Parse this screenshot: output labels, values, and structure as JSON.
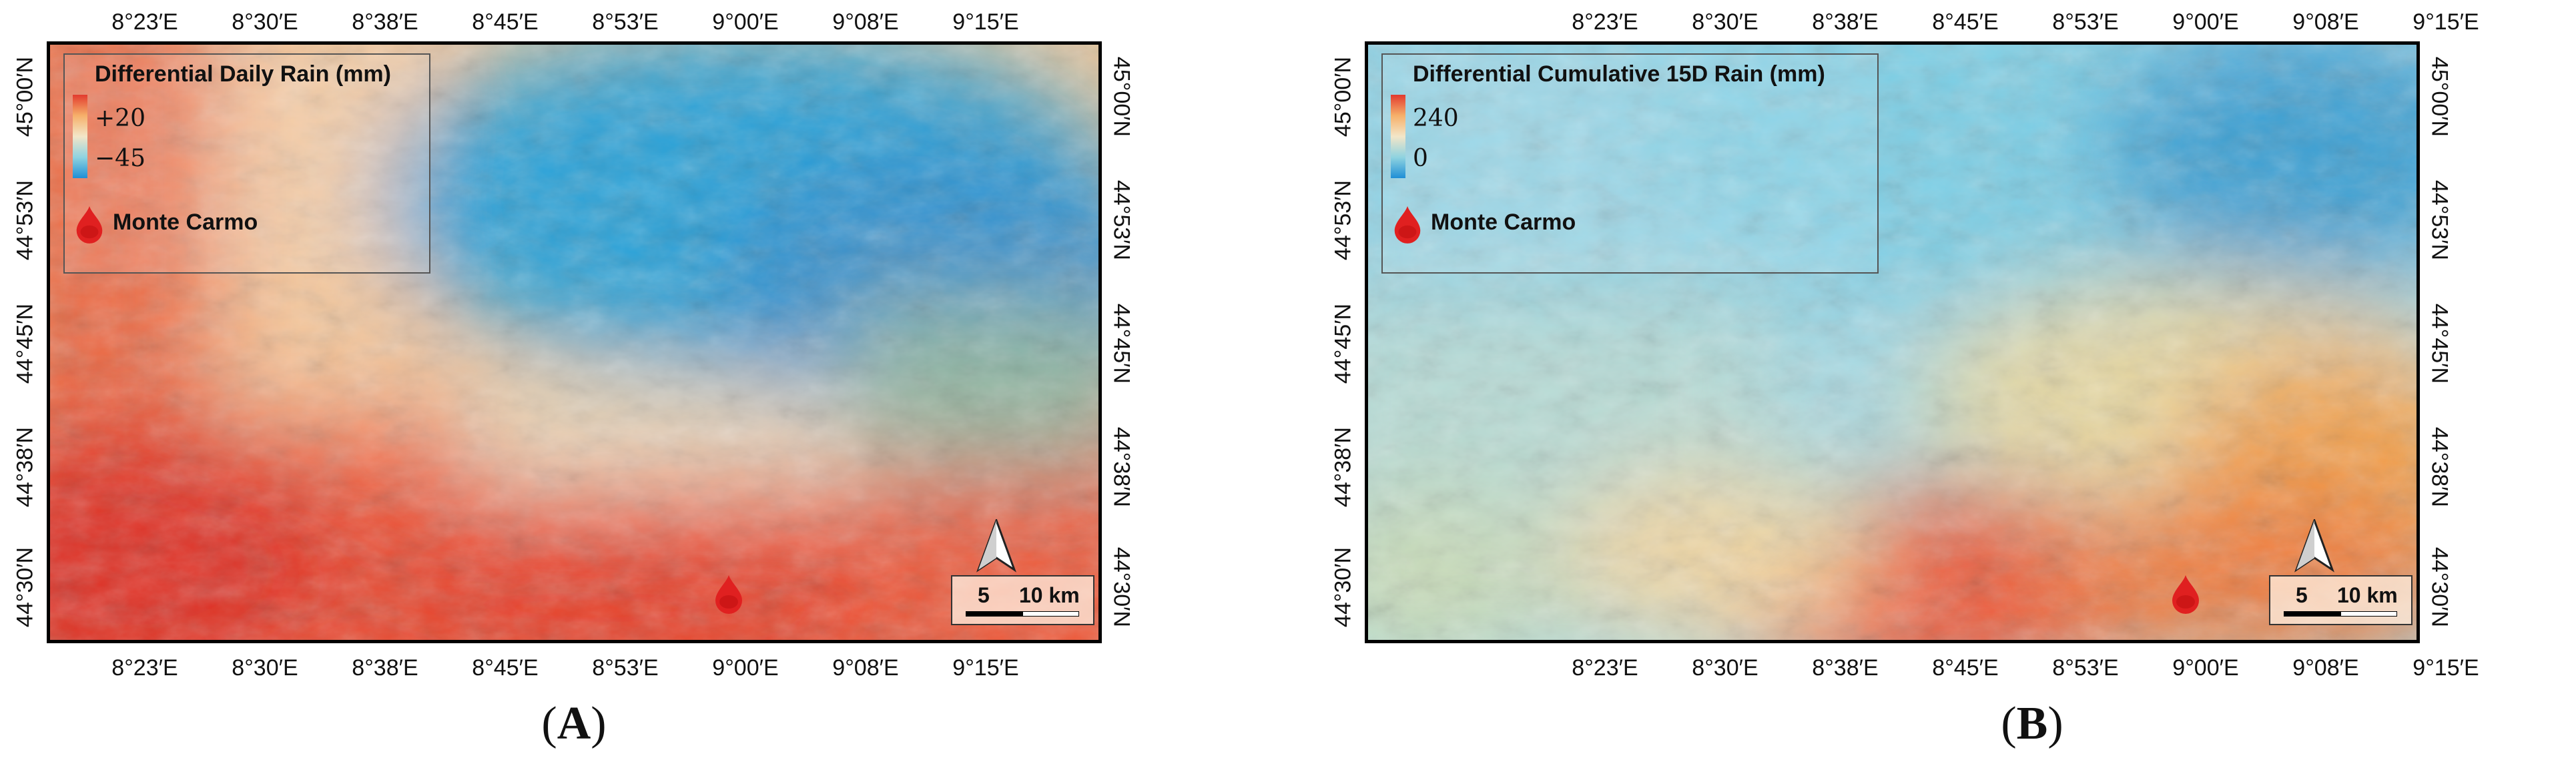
{
  "panels": [
    {
      "id": "A",
      "label_open": "(",
      "label_letter": "A",
      "label_close": ")",
      "legend": {
        "title": "Differential Daily Rain (mm)",
        "max_label": "+20",
        "min_label": "−45",
        "place_label": "Monte Carmo"
      },
      "lon_ticks": [
        "8°23′E",
        "8°30′E",
        "8°38′E",
        "8°45′E",
        "8°53′E",
        "9°00′E",
        "9°08′E",
        "9°15′E"
      ],
      "lat_ticks": [
        "45°00′N",
        "44°53′N",
        "44°45′N",
        "44°38′N",
        "44°30′N"
      ],
      "scale": {
        "small": "5",
        "large": "10 km"
      },
      "colors": {
        "high": "#e23a2e",
        "low": "#1f8fd6"
      },
      "icons": [
        "monte-carmo-marker-icon",
        "north-arrow-icon"
      ]
    },
    {
      "id": "B",
      "label_open": "(",
      "label_letter": "B",
      "label_close": ")",
      "legend": {
        "title": "Differential Cumulative 15D Rain (mm)",
        "max_label": "240",
        "min_label": "0",
        "place_label": "Monte Carmo"
      },
      "lon_ticks": [
        "8°23′E",
        "8°30′E",
        "8°38′E",
        "8°45′E",
        "8°53′E",
        "9°00′E",
        "9°08′E",
        "9°15′E"
      ],
      "lat_ticks": [
        "45°00′N",
        "44°53′N",
        "44°45′N",
        "44°38′N",
        "44°30′N"
      ],
      "scale": {
        "small": "5",
        "large": "10 km"
      },
      "colors": {
        "high": "#e23a2e",
        "low": "#1f8fd6"
      },
      "icons": [
        "monte-carmo-marker-icon",
        "north-arrow-icon"
      ]
    }
  ]
}
